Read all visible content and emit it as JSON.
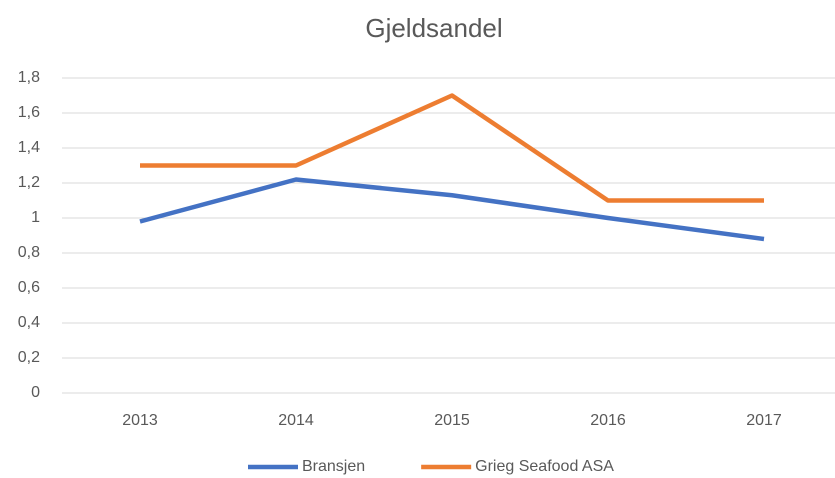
{
  "chart_data": {
    "type": "line",
    "title": "Gjeldsandel",
    "categories": [
      "2013",
      "2014",
      "2015",
      "2016",
      "2017"
    ],
    "series": [
      {
        "name": "Bransjen",
        "color": "#4472c4",
        "values": [
          0.98,
          1.22,
          1.13,
          1.0,
          0.88
        ]
      },
      {
        "name": "Grieg Seafood ASA",
        "color": "#ed7d31",
        "values": [
          1.3,
          1.3,
          1.7,
          1.1,
          1.1
        ]
      }
    ],
    "ylim": [
      0,
      1.8
    ],
    "yticks": [
      0,
      {
        "value": 0.2,
        "label": "0,2"
      },
      {
        "value": 0.4,
        "label": "0,4"
      },
      {
        "value": 0.6,
        "label": "0,6"
      },
      {
        "value": 0.8,
        "label": "0,8"
      },
      1,
      {
        "value": 1.2,
        "label": "1,2"
      },
      {
        "value": 1.4,
        "label": "1,4"
      },
      {
        "value": 1.6,
        "label": "1,6"
      },
      {
        "value": 1.8,
        "label": "1,8"
      }
    ],
    "grid": true,
    "legend": "bottom"
  }
}
